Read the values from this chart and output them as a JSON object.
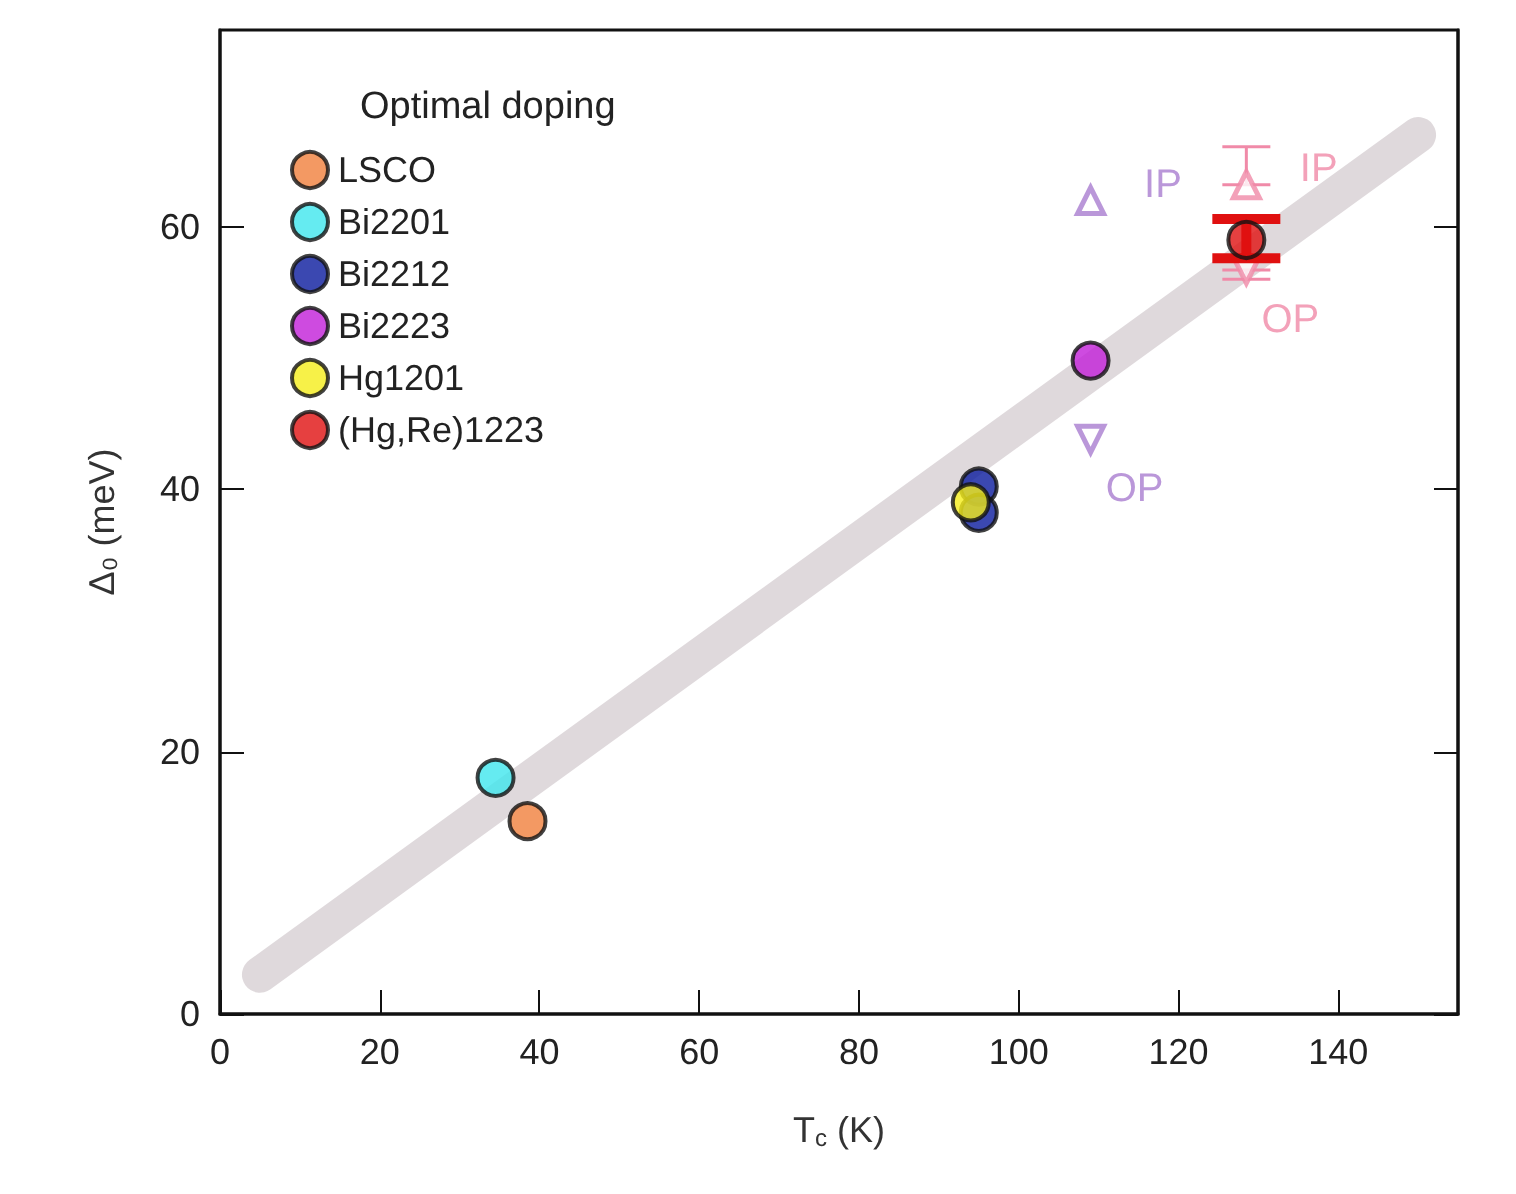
{
  "chart_data": {
    "type": "scatter",
    "xlabel": "T$_{c}$ (K)",
    "ylabel": "Δ₀ (meV)",
    "legend_title": "Optimal doping",
    "legend": "top left",
    "grid": false,
    "marker": "circle",
    "xlim": [
      0,
      155
    ],
    "xticks": [
      0,
      20,
      40,
      60,
      80,
      100,
      120,
      140
    ],
    "ylim": [
      0,
      75
    ],
    "yticks": [
      0,
      20,
      40,
      60
    ],
    "series": [
      {
        "type": "line",
        "color": "#d9d2d6",
        "x": [
          5,
          150
        ],
        "values": [
          3,
          67
        ],
        "marker": "none"
      },
      {
        "name": "LSCO",
        "color": "#f07f3c",
        "x": [
          38.5
        ],
        "values": [
          14.7
        ]
      },
      {
        "name": "Bi2201",
        "color": "#3fe6ee",
        "x": [
          34.5
        ],
        "values": [
          18
        ]
      },
      {
        "name": "Bi2212",
        "color": "#0a1a9e",
        "x": [
          95,
          95
        ],
        "values": [
          40.2,
          38.2
        ]
      },
      {
        "name": "Bi2223",
        "color": "#c21ed8",
        "x": [
          109
        ],
        "values": [
          49.8
        ]
      },
      {
        "name": "Hg1201",
        "color": "#f5ee1a",
        "x": [
          94
        ],
        "values": [
          39
        ]
      },
      {
        "name": "(Hg,Re)1223",
        "color": "#e01010",
        "x": [
          128.5
        ],
        "values": [
          59
        ],
        "errors": [
          [
            57.6,
            60.6
          ]
        ]
      },
      {
        "name": "IP",
        "color": "#a97dd0",
        "x": [
          109
        ],
        "values": [
          62
        ],
        "marker": "triangle"
      },
      {
        "name": "OP",
        "color": "#a97dd0",
        "x": [
          109
        ],
        "values": [
          43.8
        ],
        "marker": "triangle-down"
      },
      {
        "name": "IP",
        "color": "#f08aa8",
        "x": [
          128.5
        ],
        "values": [
          63.2
        ],
        "marker": "triangle",
        "errors": [
          [
            63.2,
            66.1
          ]
        ]
      },
      {
        "name": "OP",
        "color": "#f08aa8",
        "x": [
          128.5
        ],
        "values": [
          56.7
        ],
        "marker": "triangle-down",
        "errors": [
          [
            56,
            56.7
          ]
        ]
      }
    ]
  }
}
